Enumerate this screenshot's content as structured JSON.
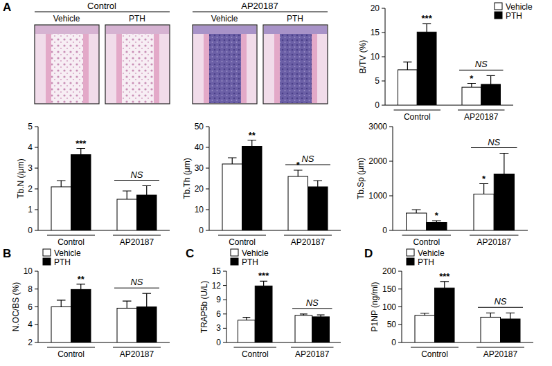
{
  "panel_labels": [
    "A",
    "B",
    "C",
    "D"
  ],
  "histology": {
    "groups": [
      {
        "label": "Control",
        "columns": [
          "Vehicle",
          "PTH"
        ]
      },
      {
        "label": "AP20187",
        "columns": [
          "Vehicle",
          "PTH"
        ]
      }
    ]
  },
  "chart_data": [
    {
      "type": "bar",
      "y_label": "B/TV (%)",
      "categories": [
        "Control",
        "AP20187"
      ],
      "grid": false,
      "legend": "top-right",
      "series": [
        {
          "name": "Vehicle",
          "color": "#ffffff",
          "values": [
            7.3,
            3.7
          ],
          "errors": [
            1.6,
            0.8
          ],
          "significance": [
            null,
            "*"
          ]
        },
        {
          "name": "PTH",
          "color": "#000000",
          "values": [
            15.1,
            4.3
          ],
          "errors": [
            1.7,
            1.8
          ],
          "significance": [
            "***",
            null
          ]
        }
      ],
      "comparisons": [
        null,
        "NS"
      ],
      "ylim": [
        0,
        20
      ],
      "yticks": [
        0,
        5,
        10,
        15,
        20
      ]
    },
    {
      "type": "bar",
      "y_label": "Tb.N (/μm)",
      "categories": [
        "Control",
        "AP20187"
      ],
      "grid": false,
      "series": [
        {
          "name": "Vehicle",
          "color": "#ffffff",
          "values": [
            2.1,
            1.5
          ],
          "errors": [
            0.3,
            0.4
          ],
          "significance": [
            null,
            null
          ]
        },
        {
          "name": "PTH",
          "color": "#000000",
          "values": [
            3.65,
            1.7
          ],
          "errors": [
            0.3,
            0.45
          ],
          "significance": [
            "***",
            null
          ]
        }
      ],
      "comparisons": [
        null,
        "NS"
      ],
      "ylim": [
        0,
        5
      ],
      "yticks": [
        0,
        1,
        2,
        3,
        4,
        5
      ]
    },
    {
      "type": "bar",
      "y_label": "Tb.Th (μm)",
      "categories": [
        "Control",
        "AP20187"
      ],
      "grid": false,
      "series": [
        {
          "name": "Vehicle",
          "color": "#ffffff",
          "values": [
            32,
            26
          ],
          "errors": [
            3,
            3
          ],
          "significance": [
            null,
            "*"
          ]
        },
        {
          "name": "PTH",
          "color": "#000000",
          "values": [
            40.5,
            21
          ],
          "errors": [
            3,
            3
          ],
          "significance": [
            "**",
            null
          ]
        }
      ],
      "comparisons": [
        null,
        "NS"
      ],
      "ylim": [
        0,
        50
      ],
      "yticks": [
        0,
        10,
        20,
        30,
        40,
        50
      ]
    },
    {
      "type": "bar",
      "y_label": "Tb.Sp (μm)",
      "categories": [
        "Control",
        "AP20187"
      ],
      "grid": false,
      "series": [
        {
          "name": "Vehicle",
          "color": "#ffffff",
          "values": [
            500,
            1050
          ],
          "errors": [
            100,
            300
          ],
          "significance": [
            null,
            "*"
          ]
        },
        {
          "name": "PTH",
          "color": "#000000",
          "values": [
            230,
            1630
          ],
          "errors": [
            50,
            600
          ],
          "significance": [
            "*",
            null
          ]
        }
      ],
      "comparisons": [
        null,
        "NS"
      ],
      "ylim": [
        0,
        3000
      ],
      "yticks": [
        0,
        1000,
        2000,
        3000
      ]
    },
    {
      "type": "bar",
      "y_label": "N.OC/BS (%)",
      "categories": [
        "Control",
        "AP20187"
      ],
      "grid": false,
      "legend": "top-left",
      "series": [
        {
          "name": "Vehicle",
          "color": "#ffffff",
          "values": [
            6.0,
            5.85
          ],
          "errors": [
            0.75,
            0.8
          ],
          "significance": [
            null,
            null
          ]
        },
        {
          "name": "PTH",
          "color": "#000000",
          "values": [
            7.95,
            6.0
          ],
          "errors": [
            0.6,
            1.5
          ],
          "significance": [
            "**",
            null
          ]
        }
      ],
      "comparisons": [
        null,
        "NS"
      ],
      "ylim": [
        2,
        10
      ],
      "yticks": [
        2,
        4,
        6,
        8,
        10
      ]
    },
    {
      "type": "bar",
      "y_label": "TRAP5b (U/L)",
      "categories": [
        "Control",
        "AP20187"
      ],
      "grid": false,
      "legend": "top-left",
      "series": [
        {
          "name": "Vehicle",
          "color": "#ffffff",
          "values": [
            4.7,
            5.7
          ],
          "errors": [
            0.6,
            0.3
          ],
          "significance": [
            null,
            null
          ]
        },
        {
          "name": "PTH",
          "color": "#000000",
          "values": [
            11.9,
            5.4
          ],
          "errors": [
            1.0,
            0.4
          ],
          "significance": [
            "***",
            null
          ]
        }
      ],
      "comparisons": [
        null,
        "NS"
      ],
      "ylim": [
        0,
        15
      ],
      "yticks": [
        0,
        3,
        6,
        9,
        12,
        15
      ]
    },
    {
      "type": "bar",
      "y_label": "P1NP (ng/ml)",
      "categories": [
        "Control",
        "AP20187"
      ],
      "grid": false,
      "legend": "top-left",
      "series": [
        {
          "name": "Vehicle",
          "color": "#ffffff",
          "values": [
            76,
            71
          ],
          "errors": [
            6,
            12
          ],
          "significance": [
            null,
            null
          ]
        },
        {
          "name": "PTH",
          "color": "#000000",
          "values": [
            153,
            66
          ],
          "errors": [
            18,
            17
          ],
          "significance": [
            "***",
            null
          ]
        }
      ],
      "comparisons": [
        null,
        "NS"
      ],
      "ylim": [
        0,
        200
      ],
      "yticks": [
        0,
        50,
        100,
        150,
        200
      ]
    }
  ]
}
